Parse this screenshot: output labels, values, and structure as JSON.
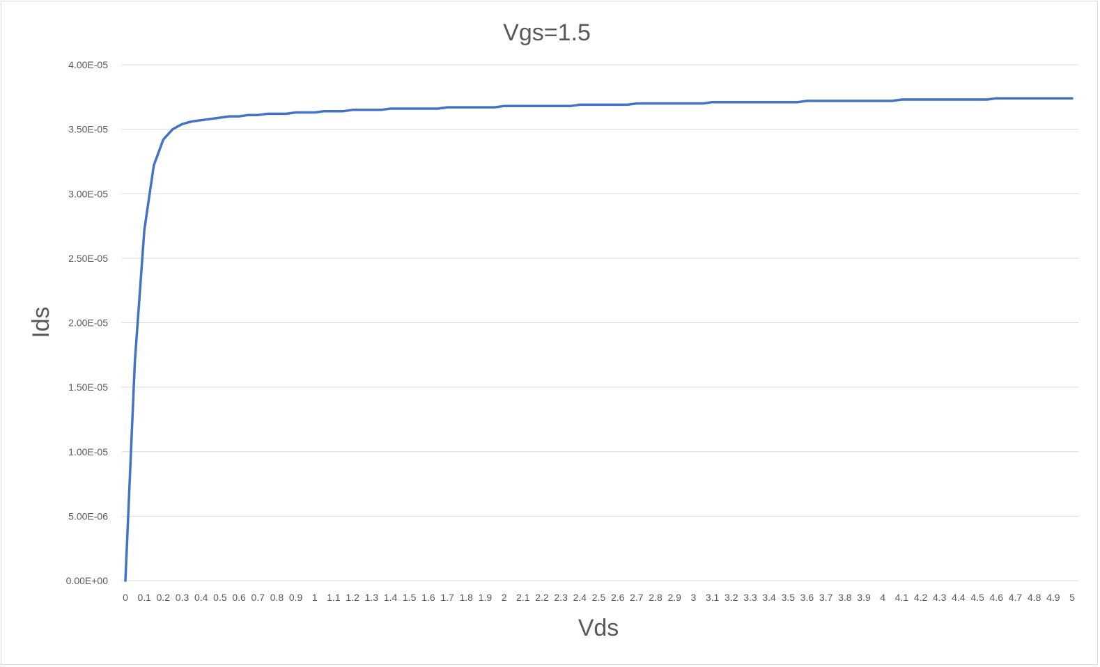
{
  "chart_data": {
    "type": "line",
    "title": "Vgs=1.5",
    "xlabel": "Vds",
    "ylabel": "Ids",
    "x": [
      "0",
      "0.1",
      "0.2",
      "0.3",
      "0.4",
      "0.5",
      "0.6",
      "0.7",
      "0.8",
      "0.9",
      "1",
      "1.1",
      "1.2",
      "1.3",
      "1.4",
      "1.5",
      "1.6",
      "1.7",
      "1.8",
      "1.9",
      "2",
      "2.1",
      "2.2",
      "2.3",
      "2.4",
      "2.5",
      "2.6",
      "2.7",
      "2.8",
      "2.9",
      "3",
      "3.1",
      "3.2",
      "3.3",
      "3.4",
      "3.5",
      "3.6",
      "3.7",
      "3.8",
      "3.9",
      "4",
      "4.1",
      "4.2",
      "4.3",
      "4.4",
      "4.5",
      "4.6",
      "4.7",
      "4.8",
      "4.9",
      "5"
    ],
    "x_values": [
      0,
      0.05,
      0.1,
      0.15,
      0.2,
      0.25,
      0.3,
      0.35,
      0.4,
      0.45,
      0.5,
      0.55,
      0.6,
      0.65,
      0.7,
      0.75,
      0.8,
      0.85,
      0.9,
      0.95,
      1,
      1.05,
      1.1,
      1.15,
      1.2,
      1.25,
      1.3,
      1.35,
      1.4,
      1.45,
      1.5,
      1.55,
      1.6,
      1.65,
      1.7,
      1.75,
      1.8,
      1.85,
      1.9,
      1.95,
      2,
      2.05,
      2.1,
      2.15,
      2.2,
      2.25,
      2.3,
      2.35,
      2.4,
      2.45,
      2.5,
      2.55,
      2.6,
      2.65,
      2.7,
      2.75,
      2.8,
      2.85,
      2.9,
      2.95,
      3,
      3.05,
      3.1,
      3.15,
      3.2,
      3.25,
      3.3,
      3.35,
      3.4,
      3.45,
      3.5,
      3.55,
      3.6,
      3.65,
      3.7,
      3.75,
      3.8,
      3.85,
      3.9,
      3.95,
      4,
      4.05,
      4.1,
      4.15,
      4.2,
      4.25,
      4.3,
      4.35,
      4.4,
      4.45,
      4.5,
      4.55,
      4.6,
      4.65,
      4.7,
      4.75,
      4.8,
      4.85,
      4.9,
      4.95,
      5
    ],
    "ids_values": [
      0,
      1.7e-05,
      2.72e-05,
      3.22e-05,
      3.42e-05,
      3.5e-05,
      3.54e-05,
      3.56e-05,
      3.57e-05,
      3.58e-05,
      3.59e-05,
      3.6e-05,
      3.6e-05,
      3.61e-05,
      3.61e-05,
      3.62e-05,
      3.62e-05,
      3.62e-05,
      3.63e-05,
      3.63e-05,
      3.63e-05,
      3.64e-05,
      3.64e-05,
      3.64e-05,
      3.65e-05,
      3.65e-05,
      3.65e-05,
      3.65e-05,
      3.66e-05,
      3.66e-05,
      3.66e-05,
      3.66e-05,
      3.66e-05,
      3.66e-05,
      3.67e-05,
      3.67e-05,
      3.67e-05,
      3.67e-05,
      3.67e-05,
      3.67e-05,
      3.68e-05,
      3.68e-05,
      3.68e-05,
      3.68e-05,
      3.68e-05,
      3.68e-05,
      3.68e-05,
      3.68e-05,
      3.69e-05,
      3.69e-05,
      3.69e-05,
      3.69e-05,
      3.69e-05,
      3.69e-05,
      3.7e-05,
      3.7e-05,
      3.7e-05,
      3.7e-05,
      3.7e-05,
      3.7e-05,
      3.7e-05,
      3.7e-05,
      3.71e-05,
      3.71e-05,
      3.71e-05,
      3.71e-05,
      3.71e-05,
      3.71e-05,
      3.71e-05,
      3.71e-05,
      3.71e-05,
      3.71e-05,
      3.72e-05,
      3.72e-05,
      3.72e-05,
      3.72e-05,
      3.72e-05,
      3.72e-05,
      3.72e-05,
      3.72e-05,
      3.72e-05,
      3.72e-05,
      3.73e-05,
      3.73e-05,
      3.73e-05,
      3.73e-05,
      3.73e-05,
      3.73e-05,
      3.73e-05,
      3.73e-05,
      3.73e-05,
      3.73e-05,
      3.74e-05,
      3.74e-05,
      3.74e-05,
      3.74e-05,
      3.74e-05,
      3.74e-05,
      3.74e-05,
      3.74e-05,
      3.74e-05
    ],
    "y_ticks": [
      "0.00E+00",
      "5.00E-06",
      "1.00E-05",
      "1.50E-05",
      "2.00E-05",
      "2.50E-05",
      "3.00E-05",
      "3.50E-05",
      "4.00E-05"
    ],
    "y_tick_values": [
      0,
      5e-06,
      1e-05,
      1.5e-05,
      2e-05,
      2.5e-05,
      3e-05,
      3.5e-05,
      4e-05
    ],
    "ylim": [
      0,
      4e-05
    ],
    "xlim": [
      0,
      5
    ],
    "grid": true,
    "series_color": "#4472c4"
  }
}
